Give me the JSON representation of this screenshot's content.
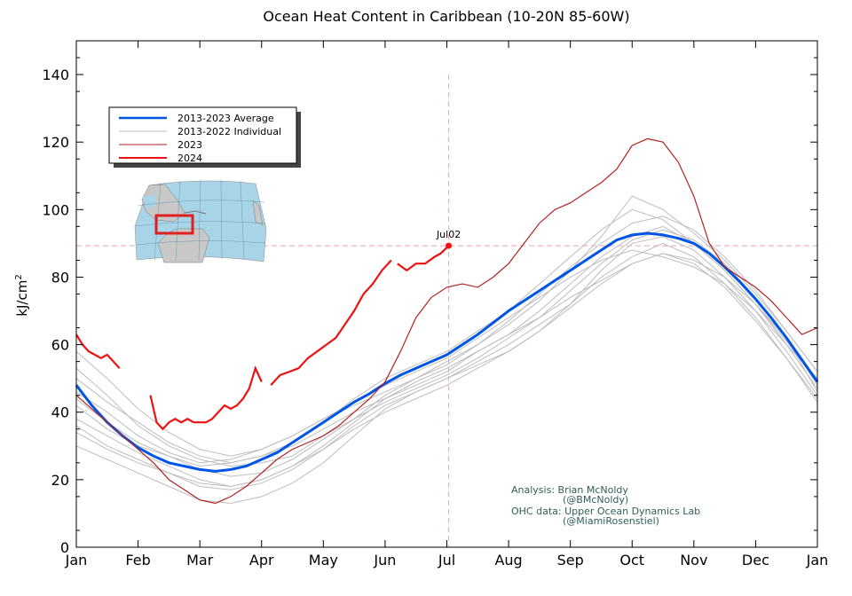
{
  "chart_data": {
    "type": "line",
    "title": "Ocean Heat Content in Caribbean (10-20N 85-60W)",
    "xlabel": "",
    "ylabel": "kJ/cm",
    "ylabel_superscript": "2",
    "ylim": [
      0,
      150
    ],
    "yticks": [
      0,
      20,
      40,
      60,
      80,
      100,
      120,
      140
    ],
    "xlim": [
      0,
      12
    ],
    "x_ticks": [
      {
        "label": "Jan",
        "x": 0
      },
      {
        "label": "Feb",
        "x": 1
      },
      {
        "label": "Mar",
        "x": 2
      },
      {
        "label": "Apr",
        "x": 3
      },
      {
        "label": "May",
        "x": 4
      },
      {
        "label": "Jun",
        "x": 5
      },
      {
        "label": "Jul",
        "x": 6
      },
      {
        "label": "Aug",
        "x": 7
      },
      {
        "label": "Sep",
        "x": 8
      },
      {
        "label": "Oct",
        "x": 9
      },
      {
        "label": "Nov",
        "x": 10
      },
      {
        "label": "Dec",
        "x": 11
      },
      {
        "label": "Jan",
        "x": 12
      }
    ],
    "grid": false,
    "legend_position": "top-left",
    "marker": {
      "label": "Jul02",
      "x": 6.03,
      "y": 89.3
    },
    "crosshair": {
      "x": 6.03,
      "y": 89.3
    },
    "series": [
      {
        "name": "2013-2023 Average",
        "color": "#0055e6",
        "style": "average",
        "x": [
          0,
          0.25,
          0.5,
          0.75,
          1,
          1.25,
          1.5,
          1.75,
          2,
          2.25,
          2.5,
          2.75,
          3,
          3.25,
          3.5,
          3.75,
          4,
          4.25,
          4.5,
          4.75,
          5,
          5.25,
          5.5,
          5.75,
          6,
          6.25,
          6.5,
          6.75,
          7,
          7.25,
          7.5,
          7.75,
          8,
          8.25,
          8.5,
          8.75,
          9,
          9.25,
          9.5,
          9.75,
          10,
          10.25,
          10.5,
          10.75,
          11,
          11.25,
          11.5,
          11.75,
          12
        ],
        "values": [
          48,
          42,
          37,
          33,
          29.5,
          27,
          25,
          24,
          23,
          22.5,
          23,
          24,
          26,
          28,
          31,
          34,
          37,
          40,
          43,
          45.5,
          48.5,
          51,
          53,
          55,
          57,
          60,
          63,
          66.5,
          70,
          73,
          76,
          79,
          82,
          85,
          88,
          91,
          92.5,
          93,
          92.5,
          91.5,
          90,
          87,
          83,
          78.5,
          73.5,
          68,
          62,
          55.5,
          49
        ]
      },
      {
        "name": "2013-2022 Individual",
        "color": "#bdbdbd",
        "style": "individual",
        "members": [
          {
            "x": [
              0,
              0.5,
              1,
              1.5,
              2,
              2.5,
              3,
              3.5,
              4,
              4.5,
              5,
              5.5,
              6,
              6.5,
              7,
              7.5,
              8,
              8.5,
              9,
              9.5,
              10,
              10.5,
              11,
              11.5,
              12
            ],
            "values": [
              42,
              35,
              30,
              27,
              24,
              25,
              27,
              30,
              35,
              40,
              44,
              48,
              52,
              58,
              63,
              70,
              78,
              86,
              92,
              95,
              90,
              82,
              72,
              60,
              47
            ]
          },
          {
            "x": [
              0,
              0.5,
              1,
              1.5,
              2,
              2.5,
              3,
              3.5,
              4,
              4.5,
              5,
              5.5,
              6,
              6.5,
              7,
              7.5,
              8,
              8.5,
              9,
              9.5,
              10,
              10.5,
              11,
              11.5,
              12
            ],
            "values": [
              36,
              30,
              26,
              22,
              18,
              17,
              19,
              23,
              29,
              36,
              42,
              46,
              50,
              55,
              60,
              66,
              72,
              80,
              86,
              90,
              86,
              78,
              68,
              56,
              44
            ]
          },
          {
            "x": [
              0,
              0.5,
              1,
              1.5,
              2,
              2.5,
              3,
              3.5,
              4,
              4.5,
              5,
              5.5,
              6,
              6.5,
              7,
              7.5,
              8,
              8.5,
              9,
              9.5,
              10,
              10.5,
              11,
              11.5,
              12
            ],
            "values": [
              53,
              45,
              36,
              30,
              26,
              24,
              25,
              27,
              33,
              38,
              45,
              50,
              54,
              60,
              67,
              75,
              83,
              90,
              96,
              98,
              94,
              86,
              76,
              64,
              52
            ]
          },
          {
            "x": [
              0,
              0.5,
              1,
              1.5,
              2,
              2.5,
              3,
              3.5,
              4,
              4.5,
              5,
              5.5,
              6,
              6.5,
              7,
              7.5,
              8,
              8.5,
              9,
              9.5,
              10,
              10.5,
              11,
              11.5,
              12
            ],
            "values": [
              30,
              26,
              22,
              18,
              14,
              13,
              15,
              19,
              25,
              33,
              41,
              46,
              50,
              54,
              58,
              64,
              72,
              82,
              90,
              92,
              88,
              80,
              70,
              58,
              45
            ]
          },
          {
            "x": [
              0,
              0.5,
              1,
              1.5,
              2,
              2.5,
              3,
              3.5,
              4,
              4.5,
              5,
              5.5,
              6,
              6.5,
              7,
              7.5,
              8,
              8.5,
              9,
              9.5,
              10,
              10.5,
              11,
              11.5,
              12
            ],
            "values": [
              46,
              40,
              33,
              28,
              25,
              26,
              29,
              33,
              38,
              43,
              48,
              52,
              56,
              62,
              68,
              74,
              80,
              85,
              88,
              86,
              83,
              78,
              70,
              60,
              50
            ]
          },
          {
            "x": [
              0,
              0.5,
              1,
              1.5,
              2,
              2.5,
              3,
              3.5,
              4,
              4.5,
              5,
              5.5,
              6,
              6.5,
              7,
              7.5,
              8,
              8.5,
              9,
              9.5,
              10,
              10.5,
              11,
              11.5,
              12
            ],
            "values": [
              50,
              43,
              37,
              31,
              27,
              25,
              27,
              31,
              37,
              44,
              50,
              54,
              58,
              64,
              70,
              78,
              86,
              94,
              100,
              97,
              90,
              82,
              72,
              61,
              49
            ]
          },
          {
            "x": [
              0,
              0.5,
              1,
              1.5,
              2,
              2.5,
              3,
              3.5,
              4,
              4.5,
              5,
              5.5,
              6,
              6.5,
              7,
              7.5,
              8,
              8.5,
              9,
              9.5,
              10,
              10.5,
              11,
              11.5,
              12
            ],
            "values": [
              38,
              33,
              28,
              24,
              20,
              18,
              20,
              24,
              30,
              37,
              44,
              49,
              53,
              58,
              63,
              68,
              74,
              79,
              84,
              87,
              85,
              80,
              72,
              62,
              48
            ]
          },
          {
            "x": [
              0,
              0.5,
              1,
              1.5,
              2,
              2.5,
              3,
              3.5,
              4,
              4.5,
              5,
              5.5,
              6,
              6.5,
              7,
              7.5,
              8,
              8.5,
              9,
              9.5,
              10,
              10.5,
              11,
              11.5,
              12
            ],
            "values": [
              58,
              50,
              41,
              34,
              29,
              27,
              29,
              33,
              38,
              42,
              46,
              50,
              55,
              60,
              66,
              73,
              82,
              92,
              104,
              100,
              93,
              85,
              75,
              64,
              52
            ]
          },
          {
            "x": [
              0,
              0.5,
              1,
              1.5,
              2,
              2.5,
              3,
              3.5,
              4,
              4.5,
              5,
              5.5,
              6,
              6.5,
              7,
              7.5,
              8,
              8.5,
              9,
              9.5,
              10,
              10.5,
              11,
              11.5,
              12
            ],
            "values": [
              44,
              37,
              31,
              27,
              23,
              21,
              22,
              26,
              32,
              38,
              43,
              47,
              51,
              56,
              62,
              68,
              76,
              84,
              91,
              94,
              91,
              84,
              74,
              62,
              46
            ]
          },
          {
            "x": [
              0,
              0.5,
              1,
              1.5,
              2,
              2.5,
              3,
              3.5,
              4,
              4.5,
              5,
              5.5,
              6,
              6.5,
              7,
              7.5,
              8,
              8.5,
              9,
              9.5,
              10,
              10.5,
              11,
              11.5,
              12
            ],
            "values": [
              34,
              29,
              25,
              22,
              19,
              18,
              20,
              24,
              29,
              35,
              40,
              44,
              48,
              53,
              58,
              64,
              71,
              78,
              84,
              87,
              84,
              77,
              67,
              56,
              43
            ]
          }
        ]
      },
      {
        "name": "2023",
        "color": "#b22222",
        "style": "thin",
        "x": [
          0,
          0.25,
          0.5,
          0.75,
          1,
          1.25,
          1.5,
          1.75,
          2,
          2.25,
          2.5,
          2.75,
          3,
          3.25,
          3.5,
          3.75,
          4,
          4.25,
          4.5,
          4.75,
          5,
          5.25,
          5.5,
          5.75,
          6,
          6.25,
          6.5,
          6.75,
          7,
          7.25,
          7.5,
          7.75,
          8,
          8.25,
          8.5,
          8.75,
          9,
          9.25,
          9.5,
          9.75,
          10,
          10.25,
          10.5,
          10.75,
          11,
          11.25,
          11.5,
          11.75,
          12
        ],
        "values": [
          45,
          41,
          37,
          33,
          29,
          25,
          20,
          17,
          14,
          13,
          15,
          18,
          22,
          26,
          29,
          31,
          33,
          36,
          40,
          44,
          49,
          58,
          68,
          74,
          77,
          78,
          77,
          80,
          84,
          90,
          96,
          100,
          102,
          105,
          108,
          112,
          119,
          121,
          120,
          114,
          104,
          90,
          83,
          80,
          77,
          73,
          68,
          63,
          65
        ]
      },
      {
        "name": "2024",
        "color": "#ee1111",
        "style": "thick",
        "segments": [
          {
            "x": [
              0,
              0.1,
              0.2,
              0.3,
              0.4,
              0.5,
              0.6,
              0.7
            ],
            "values": [
              63,
              60,
              58,
              57,
              56,
              57,
              55,
              53
            ]
          },
          {
            "x": [
              1.2,
              1.3,
              1.4,
              1.5,
              1.6,
              1.7,
              1.8,
              1.9,
              2.0,
              2.1,
              2.2,
              2.3,
              2.4,
              2.5,
              2.6,
              2.7,
              2.8,
              2.9,
              3.0
            ],
            "values": [
              45,
              37,
              35,
              37,
              38,
              37,
              38,
              37,
              37,
              37,
              38,
              40,
              42,
              41,
              42,
              44,
              47,
              53,
              49
            ]
          },
          {
            "x": [
              3.15,
              3.3,
              3.45,
              3.6,
              3.75,
              3.9,
              4.05,
              4.2,
              4.35,
              4.5,
              4.65,
              4.8,
              4.95,
              5.1
            ],
            "values": [
              48,
              51,
              52,
              53,
              56,
              58,
              60,
              62,
              66,
              70,
              75,
              78,
              82,
              85
            ]
          },
          {
            "x": [
              5.2,
              5.35,
              5.5,
              5.65,
              5.8,
              5.9,
              6.03
            ],
            "values": [
              84,
              82,
              84,
              84,
              86,
              87,
              89.3
            ]
          }
        ]
      }
    ],
    "legend": [
      {
        "label": "2013-2023 Average",
        "color": "#0055e6",
        "width": 2.5
      },
      {
        "label": "2013-2022 Individual",
        "color": "#bdbdbd",
        "width": 1
      },
      {
        "label": "2023",
        "color": "#b22222",
        "width": 1
      },
      {
        "label": "2024",
        "color": "#ee1111",
        "width": 2
      }
    ]
  },
  "credits": [
    "Analysis: Brian McNoldy",
    "(@BMcNoldy)",
    "OHC data: Upper Ocean Dynamics Lab",
    "(@MiamiRosenstiel)"
  ],
  "map_inset": {
    "icon": "caribbean-region-map",
    "box_color": "#e02020"
  }
}
